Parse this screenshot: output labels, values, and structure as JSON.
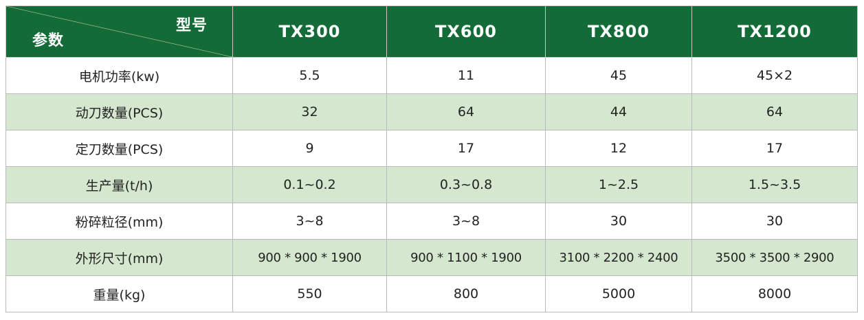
{
  "header": {
    "corner_top": "型号",
    "corner_bottom": "参数",
    "models": [
      "TX300",
      "TX600",
      "TX800",
      "TX1200"
    ]
  },
  "rows": [
    {
      "label": "电机功率(kw)",
      "values": [
        "5.5",
        "11",
        "45",
        "45×2"
      ]
    },
    {
      "label": "动刀数量(PCS)",
      "values": [
        "32",
        "64",
        "44",
        "64"
      ]
    },
    {
      "label": "定刀数量(PCS)",
      "values": [
        "9",
        "17",
        "12",
        "17"
      ]
    },
    {
      "label": "生产量(t/h)",
      "values": [
        "0.1~0.2",
        "0.3~0.8",
        "1~2.5",
        "1.5~3.5"
      ]
    },
    {
      "label": "粉碎粒径(mm)",
      "values": [
        "3~8",
        "3~8",
        "30",
        "30"
      ]
    },
    {
      "label": "外形尺寸(mm)",
      "values": [
        "900 * 900 * 1900",
        "900 * 1100 * 1900",
        "3100 * 2200 * 2400",
        "3500 * 3500 * 2900"
      ]
    },
    {
      "label": "重量(kg)",
      "values": [
        "550",
        "800",
        "5000",
        "8000"
      ]
    }
  ],
  "colors": {
    "header_bg": "#136b38",
    "alt_row_bg": "#d5e8cf"
  }
}
